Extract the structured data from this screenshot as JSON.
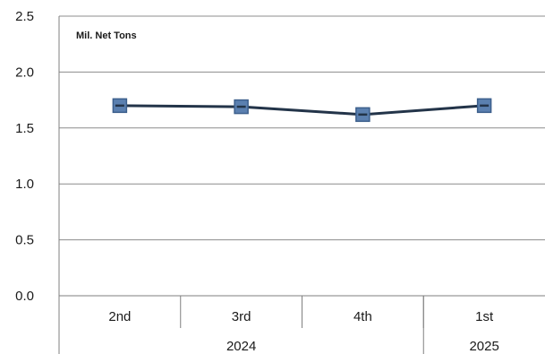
{
  "chart_data": {
    "type": "line",
    "unit_label": "Mil. Net Tons",
    "categories": [
      "2nd",
      "3rd",
      "4th",
      "1st"
    ],
    "category_groups": [
      {
        "label": "2024",
        "span": 3
      },
      {
        "label": "2025",
        "span": 1
      }
    ],
    "series": [
      {
        "values": [
          1.7,
          1.69,
          1.62,
          1.7
        ]
      }
    ],
    "ylim": [
      0,
      2.5
    ],
    "yticks": [
      "0.0",
      "0.5",
      "1.0",
      "1.5",
      "2.0",
      "2.5"
    ],
    "grid": true,
    "colors": {
      "line": "#233449",
      "marker_fill": "#5b80b0",
      "marker_edge": "#3c5f8c",
      "grid": "#8c8c8c"
    }
  }
}
